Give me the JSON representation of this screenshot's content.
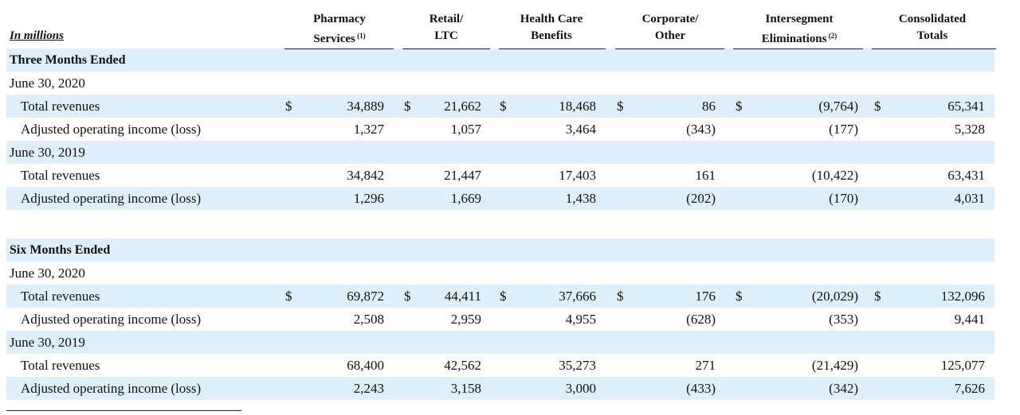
{
  "units_label": "In millions",
  "columns": [
    {
      "line1": "Pharmacy",
      "line2": "Services",
      "note": "(1)"
    },
    {
      "line1": "Retail/",
      "line2": "LTC",
      "note": ""
    },
    {
      "line1": "Health Care",
      "line2": "Benefits",
      "note": ""
    },
    {
      "line1": "Corporate/",
      "line2": "Other",
      "note": ""
    },
    {
      "line1": "Intersegment",
      "line2": "Eliminations",
      "note": "(2)"
    },
    {
      "line1": "Consolidated",
      "line2": "Totals",
      "note": ""
    }
  ],
  "currency_symbol": "$",
  "rows": [
    {
      "kind": "section",
      "label": "Three Months Ended"
    },
    {
      "kind": "period",
      "label": "June 30, 2020"
    },
    {
      "kind": "data",
      "label": "Total revenues",
      "currency": true,
      "values": [
        "34,889",
        "21,662",
        "18,468",
        "86",
        "(9,764)",
        "65,341"
      ]
    },
    {
      "kind": "data",
      "label": "Adjusted operating income (loss)",
      "currency": false,
      "values": [
        "1,327",
        "1,057",
        "3,464",
        "(343)",
        "(177)",
        "5,328"
      ]
    },
    {
      "kind": "period",
      "label": "June 30, 2019"
    },
    {
      "kind": "data",
      "label": "Total revenues",
      "currency": false,
      "values": [
        "34,842",
        "21,447",
        "17,403",
        "161",
        "(10,422)",
        "63,431"
      ]
    },
    {
      "kind": "data",
      "label": "Adjusted operating income (loss)",
      "currency": false,
      "values": [
        "1,296",
        "1,669",
        "1,438",
        "(202)",
        "(170)",
        "4,031"
      ]
    },
    {
      "kind": "spacer",
      "label": ""
    },
    {
      "kind": "section",
      "label": "Six Months Ended"
    },
    {
      "kind": "period",
      "label": "June 30, 2020"
    },
    {
      "kind": "data",
      "label": "Total revenues",
      "currency": true,
      "values": [
        "69,872",
        "44,411",
        "37,666",
        "176",
        "(20,029)",
        "132,096"
      ]
    },
    {
      "kind": "data",
      "label": "Adjusted operating income (loss)",
      "currency": false,
      "values": [
        "2,508",
        "2,959",
        "4,955",
        "(628)",
        "(353)",
        "9,441"
      ]
    },
    {
      "kind": "period",
      "label": "June 30, 2019"
    },
    {
      "kind": "data",
      "label": "Total revenues",
      "currency": false,
      "values": [
        "68,400",
        "42,562",
        "35,273",
        "271",
        "(21,429)",
        "125,077"
      ]
    },
    {
      "kind": "data",
      "label": "Adjusted operating income (loss)",
      "currency": false,
      "values": [
        "2,243",
        "3,158",
        "3,000",
        "(433)",
        "(342)",
        "7,626"
      ]
    }
  ],
  "colors": {
    "row_shade": "#def0fb",
    "text": "#111111",
    "rule": "#222222"
  }
}
